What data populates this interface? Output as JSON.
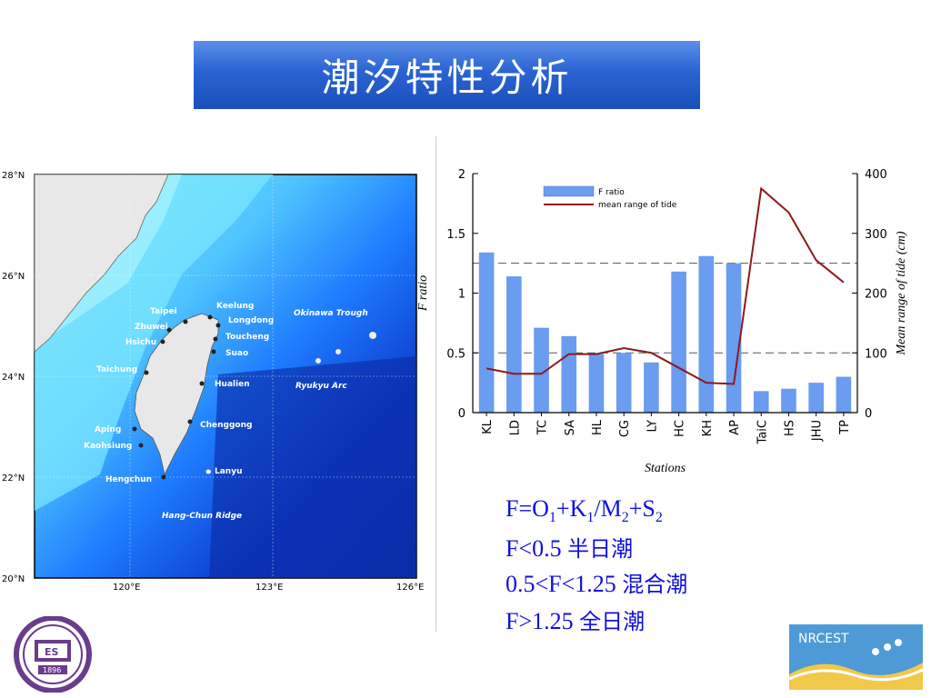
{
  "header": {
    "title": "潮汐特性分析"
  },
  "map": {
    "lat_labels": [
      "28°N",
      "26°N",
      "24°N",
      "22°N",
      "20°N"
    ],
    "lon_labels": [
      "120°E",
      "123°E",
      "126°E"
    ],
    "stations": [
      {
        "name": "Keelung"
      },
      {
        "name": "Taipei"
      },
      {
        "name": "Longdong"
      },
      {
        "name": "Zhuwei"
      },
      {
        "name": "Toucheng"
      },
      {
        "name": "Hsichu"
      },
      {
        "name": "Suao"
      },
      {
        "name": "Taichung"
      },
      {
        "name": "Hualien"
      },
      {
        "name": "Chenggong"
      },
      {
        "name": "Aping"
      },
      {
        "name": "Kaohsiung"
      },
      {
        "name": "Lanyu"
      },
      {
        "name": "Hengchun"
      }
    ],
    "features": [
      "Okinawa Trough",
      "Ryukyu Arc",
      "Hang-Chun Ridge"
    ],
    "colors": {
      "land": "#e6e6e6",
      "shallow": "#7fe8ff",
      "mid": "#1e7cff",
      "deep": "#0a2ab0"
    }
  },
  "chart_data": {
    "type": "bar",
    "categories": [
      "KL",
      "LD",
      "TC",
      "SA",
      "HL",
      "CG",
      "LY",
      "HC",
      "KH",
      "AP",
      "TaiC",
      "HS",
      "JHU",
      "TP"
    ],
    "series": [
      {
        "name": "F ratio",
        "type": "bar",
        "axis": "left",
        "color": "#6a9cf0",
        "values": [
          1.34,
          1.14,
          0.71,
          0.64,
          0.49,
          0.5,
          0.42,
          1.18,
          1.31,
          1.25,
          0.18,
          0.2,
          0.25,
          0.3
        ]
      },
      {
        "name": "mean range of tide",
        "type": "line",
        "axis": "right",
        "color": "#8b1a1a",
        "values": [
          74,
          65,
          65,
          98,
          98,
          108,
          100,
          75,
          50,
          48,
          375,
          335,
          255,
          218
        ]
      }
    ],
    "xlabel": "Stations",
    "ylabel": "F ratio",
    "ylabel_right": "Mean range of tide (cm)",
    "ylim": [
      0,
      2
    ],
    "ylim_right": [
      0,
      400
    ],
    "yticks": [
      "0",
      "0.5",
      "1",
      "1.5",
      "2"
    ],
    "yticks_right": [
      "0",
      "100",
      "200",
      "300",
      "400"
    ],
    "reference_lines": [
      0.5,
      1.25
    ],
    "legend_position": "top-left"
  },
  "formulas": {
    "line1": {
      "p1": "F=O",
      "s1": "1",
      "p2": "+K",
      "s2": "1",
      "p3": "/M",
      "s3": "2",
      "p4": "+S",
      "s4": "2"
    },
    "line2": {
      "expr": "F<0.5",
      "label": "半日潮"
    },
    "line3": {
      "expr": "0.5<F<1.25",
      "label": "混合潮"
    },
    "line4": {
      "expr": "F>1.25",
      "label": "全日潮"
    }
  },
  "logos": {
    "left": {
      "year": "1896",
      "letters": "ES"
    },
    "right": {
      "text": "NRCEST"
    }
  }
}
